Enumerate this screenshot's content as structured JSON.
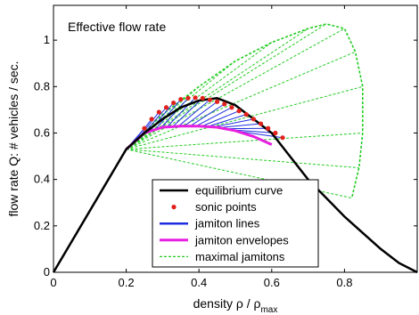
{
  "chart_data": {
    "type": "line",
    "title": "Effective flow rate",
    "xlabel": "density ρ / ρ",
    "xlabel_subscript": "max",
    "ylabel": "flow rate Q: # vehicles / sec.",
    "xlim": [
      0,
      1
    ],
    "ylim": [
      0,
      1.15
    ],
    "x_ticks": [
      0,
      0.2,
      0.4,
      0.6,
      0.8
    ],
    "x_tick_labels": [
      "0",
      "0.2",
      "0.4",
      "0.6",
      "0.8"
    ],
    "y_ticks": [
      0,
      0.2,
      0.4,
      0.6,
      0.8,
      1
    ],
    "y_tick_labels": [
      "0",
      "0.2",
      "0.4",
      "0.6",
      "0.8",
      "1"
    ],
    "grid": false,
    "legend_position": "bottom-center",
    "series": [
      {
        "name": "equilibrium curve",
        "color": "#000000",
        "style": "solid",
        "x": [
          0,
          0.2,
          0.25,
          0.3,
          0.35,
          0.4,
          0.45,
          0.5,
          0.55,
          0.6,
          0.65,
          0.7,
          0.75,
          0.8,
          0.85,
          0.9,
          0.95,
          1.0
        ],
        "y": [
          0,
          0.53,
          0.6,
          0.66,
          0.71,
          0.74,
          0.75,
          0.72,
          0.66,
          0.6,
          0.5,
          0.4,
          0.32,
          0.24,
          0.17,
          0.1,
          0.04,
          0
        ]
      },
      {
        "name": "sonic points",
        "color": "#e3211c",
        "style": "markers",
        "x": [
          0.25,
          0.27,
          0.29,
          0.31,
          0.33,
          0.35,
          0.37,
          0.39,
          0.41,
          0.43,
          0.45,
          0.47,
          0.49,
          0.51,
          0.53,
          0.55,
          0.57,
          0.59,
          0.61,
          0.63
        ],
        "y": [
          0.62,
          0.66,
          0.69,
          0.71,
          0.73,
          0.745,
          0.75,
          0.752,
          0.75,
          0.743,
          0.735,
          0.725,
          0.71,
          0.695,
          0.68,
          0.66,
          0.64,
          0.62,
          0.6,
          0.58
        ]
      },
      {
        "name": "jamiton lines",
        "color": "#1f2fe0",
        "style": "solid",
        "envelope_x": [
          0.2,
          0.25,
          0.3,
          0.35,
          0.4,
          0.45,
          0.5,
          0.55,
          0.6
        ],
        "envelope_y": [
          0.53,
          0.6,
          0.625,
          0.63,
          0.63,
          0.625,
          0.61,
          0.585,
          0.55
        ]
      },
      {
        "name": "jamiton envelopes",
        "color": "#e81fe0",
        "style": "solid",
        "x": [
          0.2,
          0.25,
          0.3,
          0.35,
          0.4,
          0.45,
          0.5,
          0.55,
          0.6
        ],
        "y": [
          0.53,
          0.6,
          0.625,
          0.63,
          0.63,
          0.625,
          0.61,
          0.585,
          0.55
        ]
      },
      {
        "name": "maximal jamitons",
        "color": "#22cc22",
        "style": "dashed",
        "x": [
          0.2,
          0.3,
          0.4,
          0.5,
          0.6,
          0.7,
          0.75,
          0.8,
          0.83,
          0.85,
          0.85,
          0.84,
          0.82
        ],
        "y": [
          0.53,
          0.68,
          0.8,
          0.91,
          0.99,
          1.05,
          1.07,
          1.05,
          0.95,
          0.8,
          0.6,
          0.45,
          0.32
        ]
      }
    ]
  }
}
